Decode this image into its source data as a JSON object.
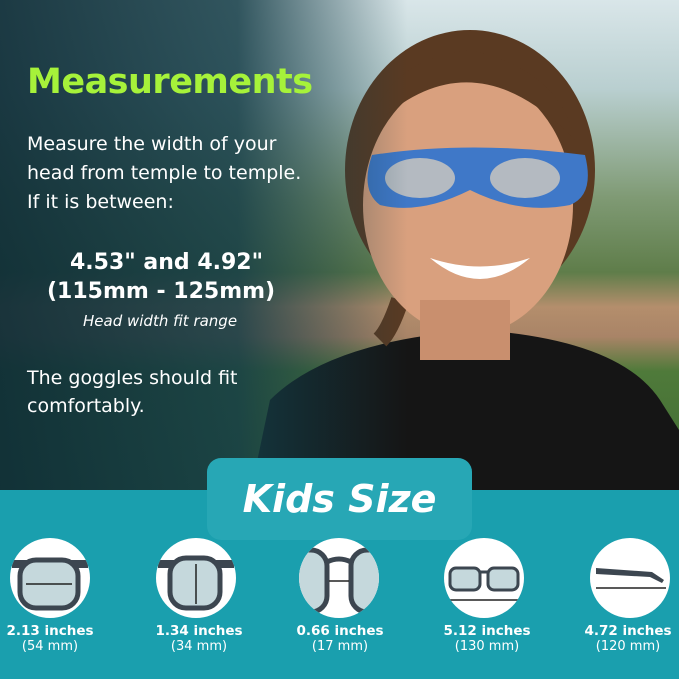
{
  "heading": "Measurements",
  "instruction": "Measure the width of your head from temple to temple. If it is between:",
  "range_inches": "4.53\" and 4.92\"",
  "range_mm": "(115mm - 125mm)",
  "range_caption": "Head width fit range",
  "fit_note": "The goggles should fit comfortably.",
  "size_label": "Kids Size",
  "colors": {
    "accent_green": "#a6f23a",
    "teal": "#1a9fae",
    "goggle_blue": "#3f78c8"
  },
  "measurements": [
    {
      "icon": "lens-width-icon",
      "inches": "2.13 inches",
      "mm": "(54 mm)"
    },
    {
      "icon": "lens-height-icon",
      "inches": "1.34 inches",
      "mm": "(34 mm)"
    },
    {
      "icon": "bridge-width-icon",
      "inches": "0.66 inches",
      "mm": "(17 mm)"
    },
    {
      "icon": "frame-width-icon",
      "inches": "5.12 inches",
      "mm": "(130 mm)"
    },
    {
      "icon": "temple-length-icon",
      "inches": "4.72 inches",
      "mm": "(120 mm)"
    }
  ]
}
